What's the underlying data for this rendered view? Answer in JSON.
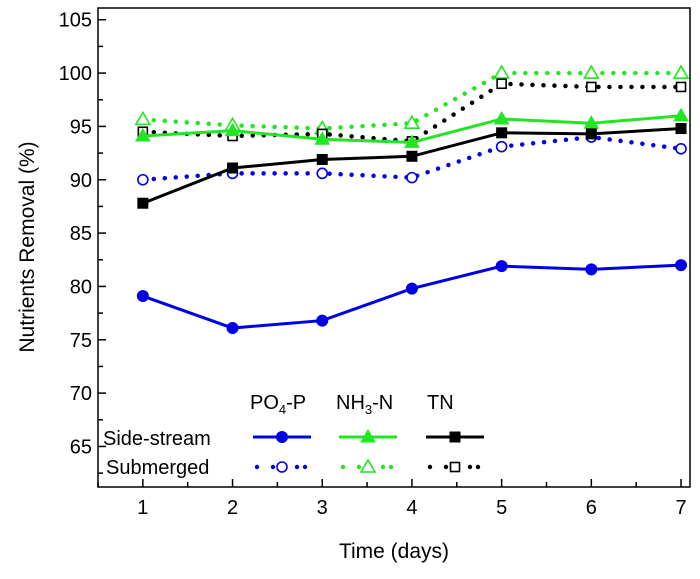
{
  "chart_data": {
    "type": "line",
    "title": "",
    "xlabel": "Time (days)",
    "ylabel": "Nutrients Removal (%)",
    "xlim": [
      0.5,
      7.1
    ],
    "ylim": [
      61.2,
      106.1
    ],
    "x": [
      1,
      2,
      3,
      4,
      5,
      6,
      7
    ],
    "xticks": [
      "1",
      "2",
      "3",
      "4",
      "5",
      "6",
      "7"
    ],
    "yticks": [
      "65",
      "70",
      "75",
      "80",
      "85",
      "90",
      "95",
      "100",
      "105"
    ],
    "grid": false,
    "legend": {
      "placement": "bottom-left",
      "columns": [
        "PO4-P",
        "NH3-N",
        "TN"
      ],
      "rows": [
        "Side-stream",
        "Submerged"
      ]
    },
    "series": [
      {
        "name": "Side-stream PO4-P",
        "color": "#0000e6",
        "style": "solid",
        "marker": "circle-filled",
        "values": [
          79.1,
          76.1,
          76.8,
          79.8,
          81.9,
          81.6,
          82.0
        ]
      },
      {
        "name": "Side-stream NH3-N",
        "color": "#22e622",
        "style": "solid",
        "marker": "triangle-filled",
        "values": [
          94.1,
          94.6,
          93.8,
          93.5,
          95.7,
          95.3,
          96.0
        ]
      },
      {
        "name": "Side-stream TN",
        "color": "#000000",
        "style": "solid",
        "marker": "square-filled",
        "values": [
          87.8,
          91.1,
          91.9,
          92.2,
          94.4,
          94.3,
          94.8
        ]
      },
      {
        "name": "Submerged PO4-P",
        "color": "#0000e6",
        "style": "dotted",
        "marker": "circle-open",
        "values": [
          90.0,
          90.6,
          90.6,
          90.2,
          93.1,
          94.0,
          92.9
        ]
      },
      {
        "name": "Submerged NH3-N",
        "color": "#22e622",
        "style": "dotted",
        "marker": "triangle-open",
        "values": [
          95.65,
          95.1,
          94.8,
          95.3,
          100.0,
          100.0,
          100.0
        ]
      },
      {
        "name": "Submerged TN",
        "color": "#000000",
        "style": "dotted",
        "marker": "square-open",
        "values": [
          94.5,
          94.1,
          94.3,
          93.6,
          99.0,
          98.7,
          98.7
        ]
      }
    ]
  }
}
